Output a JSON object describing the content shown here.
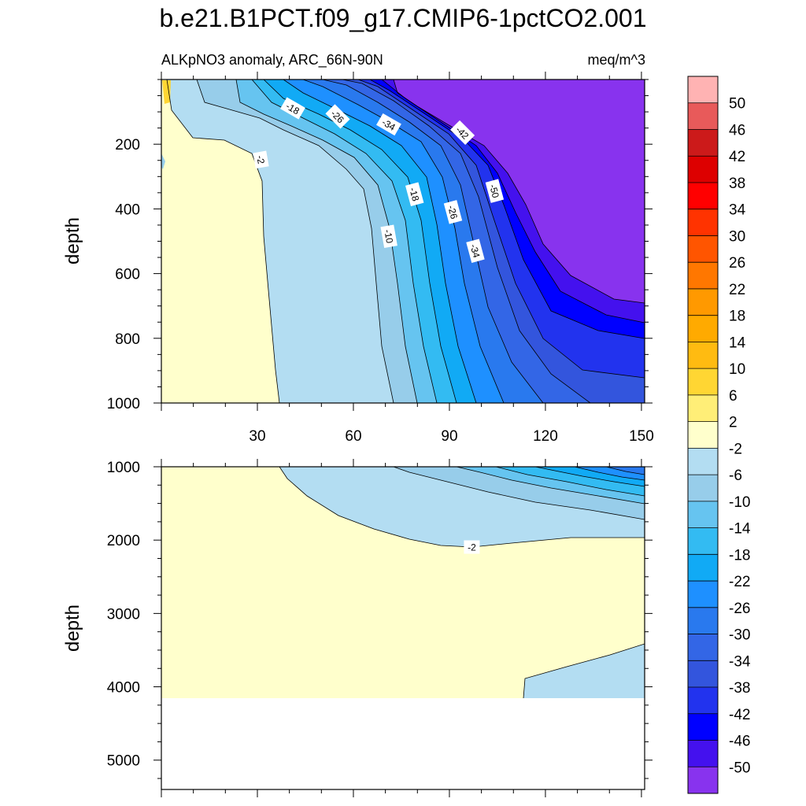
{
  "chart_data": {
    "type": "contour",
    "title": "b.e21.B1PCT.f09_g17.CMIP6-1pctCO2.001",
    "subtitle_left": "ALKpNO3 anomaly, ARC_66N-90N",
    "subtitle_right": "meq/m^3",
    "colorbar": {
      "labels": [
        "50",
        "46",
        "42",
        "38",
        "34",
        "30",
        "26",
        "22",
        "18",
        "14",
        "10",
        "6",
        "2",
        "-2",
        "-6",
        "-10",
        "-14",
        "-18",
        "-22",
        "-26",
        "-30",
        "-34",
        "-38",
        "-42",
        "-46",
        "-50"
      ],
      "colors": [
        "#ffb3b3",
        "#e85a5a",
        "#cc1a1a",
        "#dd0000",
        "#ff0000",
        "#ff3300",
        "#ff5500",
        "#ff7700",
        "#ff9900",
        "#ffaa00",
        "#ffbb11",
        "#ffd633",
        "#ffee77",
        "#ffffcc",
        "#b3ddf2",
        "#97cdea",
        "#66c4f0",
        "#33bbf2",
        "#11aaf5",
        "#1e90ff",
        "#2979ee",
        "#3366e6",
        "#3355dd",
        "#2233ee",
        "#0000ff",
        "#4411ee",
        "#8833ee"
      ]
    },
    "panels": [
      {
        "name": "upper",
        "ylabel": "depth",
        "y_range": [
          0,
          1000
        ],
        "y_ticks": [
          "200",
          "400",
          "600",
          "800",
          "1000"
        ],
        "x_range": [
          0,
          151
        ],
        "x_ticks": [
          "30",
          "60",
          "90",
          "120",
          "150"
        ],
        "contour_labels": [
          {
            "text": "-18",
            "x": 41,
            "y": 90,
            "angle": 30
          },
          {
            "text": "-26",
            "x": 55,
            "y": 115,
            "angle": 45
          },
          {
            "text": "-34",
            "x": 71,
            "y": 140,
            "angle": 30
          },
          {
            "text": "-42",
            "x": 94,
            "y": 165,
            "angle": 45
          },
          {
            "text": "-50",
            "x": 104,
            "y": 345,
            "angle": 75
          },
          {
            "text": "-2",
            "x": 31,
            "y": 248,
            "angle": 80
          },
          {
            "text": "-18",
            "x": 79,
            "y": 355,
            "angle": 75
          },
          {
            "text": "-26",
            "x": 91,
            "y": 410,
            "angle": 75
          },
          {
            "text": "-34",
            "x": 98,
            "y": 530,
            "angle": 75
          },
          {
            "text": "-10",
            "x": 71,
            "y": 485,
            "angle": 80
          }
        ]
      },
      {
        "name": "lower",
        "ylabel": "depth",
        "y_range": [
          1000,
          5400
        ],
        "y_ticks": [
          "1000",
          "2000",
          "3000",
          "4000",
          "5000"
        ],
        "x_range": [
          0,
          151
        ],
        "contour_labels": [
          {
            "text": "-2",
            "x": 97,
            "y": 2100,
            "angle": 0
          }
        ]
      }
    ]
  }
}
